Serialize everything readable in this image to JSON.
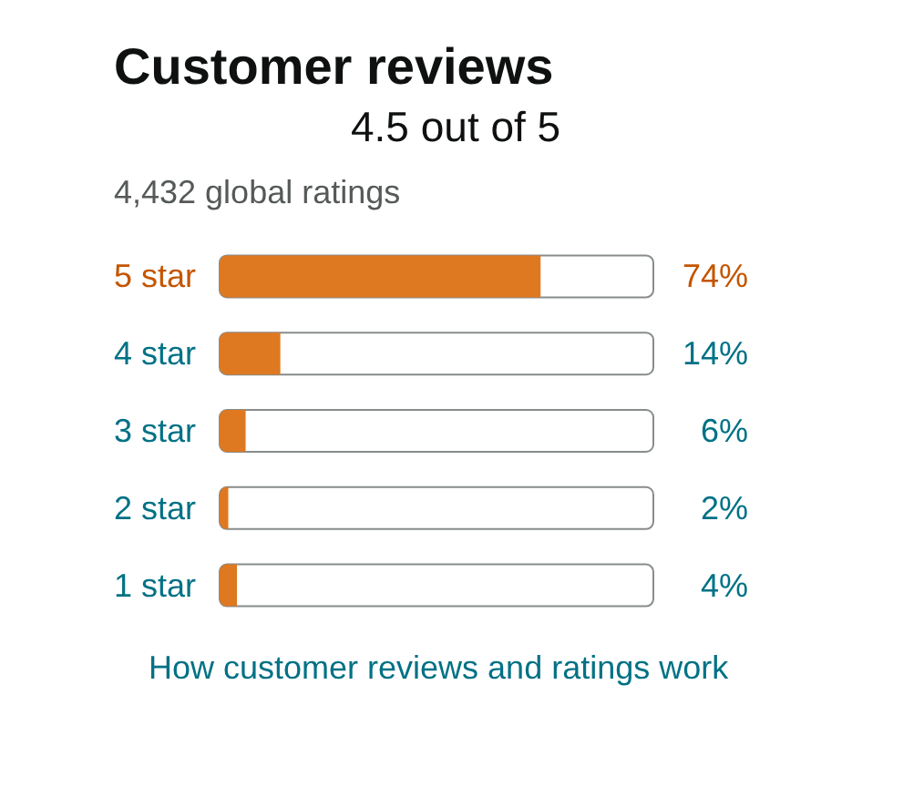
{
  "chart_data": {
    "type": "bar",
    "orientation": "horizontal",
    "title": "Customer reviews",
    "subtitle": "4.5 out of 5",
    "annotations": [
      "4,432 global ratings",
      "How customer reviews and ratings work"
    ],
    "categories": [
      "5 star",
      "4 star",
      "3 star",
      "2 star",
      "1 star"
    ],
    "values": [
      74,
      14,
      6,
      2,
      4
    ],
    "color": "#de7921",
    "value_labels": [
      "74%",
      "14%",
      "6%",
      "2%",
      "4%"
    ],
    "tick_labels": "y"
  }
}
